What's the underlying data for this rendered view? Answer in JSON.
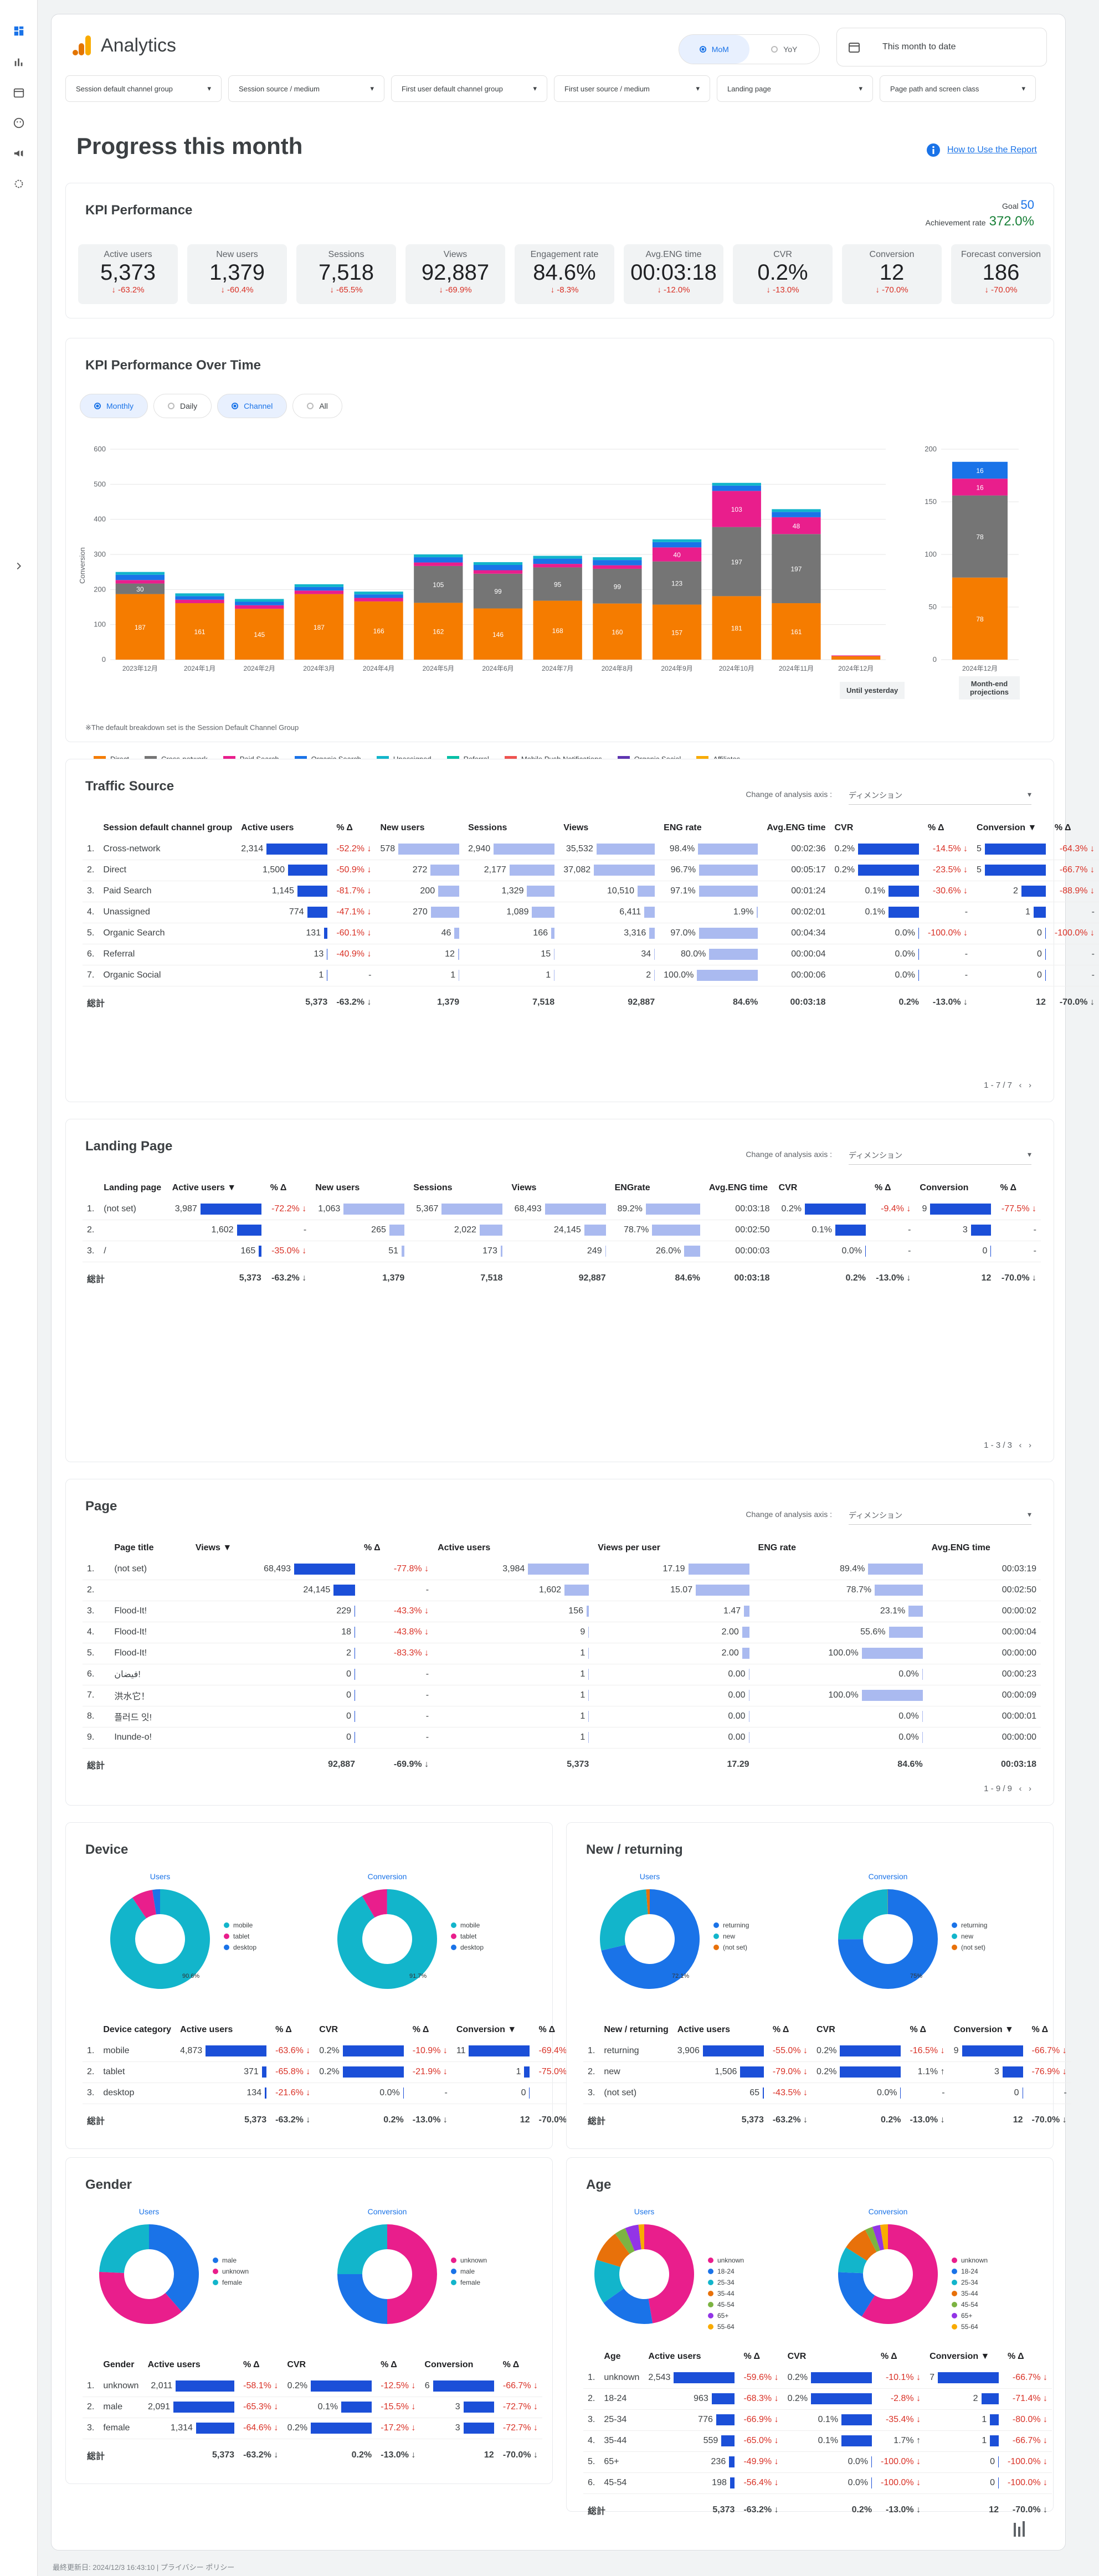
{
  "app": {
    "title": "Analytics",
    "date_range": "This month to date",
    "howto": "How to Use the Report",
    "footer": "最終更新日: 2024/12/3 16:43:10 | プライバシー ポリシー"
  },
  "compare": {
    "mom": "MoM",
    "yoy": "YoY"
  },
  "filters": [
    "Session default channel group",
    "Session source / medium",
    "First user default channel group",
    "First user source / medium",
    "Landing page",
    "Page path and screen class"
  ],
  "page_title": "Progress this month",
  "kpi": {
    "title": "KPI Performance",
    "goal_label": "Goal",
    "goal": "50",
    "ach_label": "Achievement rate",
    "ach": "372.0%",
    "cards": [
      {
        "label": "Active users",
        "value": "5,373",
        "delta": "↓ -63.2%"
      },
      {
        "label": "New users",
        "value": "1,379",
        "delta": "↓ -60.4%"
      },
      {
        "label": "Sessions",
        "value": "7,518",
        "delta": "↓ -65.5%"
      },
      {
        "label": "Views",
        "value": "92,887",
        "delta": "↓ -69.9%"
      },
      {
        "label": "Engagement rate",
        "value": "84.6%",
        "delta": "↓ -8.3%"
      },
      {
        "label": "Avg.ENG time",
        "value": "00:03:18",
        "delta": "↓ -12.0%"
      },
      {
        "label": "CVR",
        "value": "0.2%",
        "delta": "↓ -13.0%"
      },
      {
        "label": "Conversion",
        "value": "12",
        "delta": "↓ -70.0%"
      },
      {
        "label": "Forecast conversion",
        "value": "186",
        "delta": "↓ -70.0%"
      }
    ]
  },
  "kpi_time": {
    "title": "KPI Performance Over Time",
    "chips": [
      "Monthly",
      "Daily",
      "Channel",
      "All"
    ],
    "ylabel": "Conversion",
    "until": "Until yesterday",
    "proj": "Month-end projections",
    "note": "※The default breakdown set is the Session Default Channel Group",
    "legend": [
      {
        "name": "Direct",
        "color": "#f57c00"
      },
      {
        "name": "Cross-network",
        "color": "#757575"
      },
      {
        "name": "Paid Search",
        "color": "#e91e8c"
      },
      {
        "name": "Organic Search",
        "color": "#1a73e8"
      },
      {
        "name": "Unassigned",
        "color": "#12b5cb"
      },
      {
        "name": "Referral",
        "color": "#00bfa5"
      },
      {
        "name": "Mobile Push Notifications",
        "color": "#ef5350"
      },
      {
        "name": "Organic Social",
        "color": "#5e35b1"
      },
      {
        "name": "Affiliates",
        "color": "#f9ab00"
      }
    ]
  },
  "chart_data": {
    "type": "bar",
    "stacked": true,
    "ylabel": "Conversion",
    "ylim": [
      0,
      600
    ],
    "categories": [
      "2023年12月",
      "2024年1月",
      "2024年2月",
      "2024年3月",
      "2024年4月",
      "2024年5月",
      "2024年6月",
      "2024年7月",
      "2024年8月",
      "2024年9月",
      "2024年10月",
      "2024年11月",
      "2024年12月"
    ],
    "series": [
      {
        "name": "Direct",
        "values": [
          187,
          161,
          145,
          187,
          166,
          162,
          146,
          168,
          160,
          157,
          181,
          161,
          10
        ]
      },
      {
        "name": "Cross-network",
        "values": [
          30,
          0,
          0,
          0,
          0,
          105,
          99,
          95,
          99,
          123,
          197,
          197,
          0
        ]
      },
      {
        "name": "Paid Search",
        "values": [
          10,
          10,
          10,
          10,
          10,
          10,
          10,
          10,
          10,
          40,
          103,
          48,
          2
        ]
      },
      {
        "name": "Organic Search",
        "values": [
          15,
          10,
          10,
          10,
          10,
          15,
          15,
          15,
          15,
          15,
          15,
          15,
          0
        ]
      },
      {
        "name": "Unassigned",
        "values": [
          8,
          8,
          8,
          8,
          8,
          8,
          8,
          8,
          8,
          8,
          8,
          8,
          0
        ]
      }
    ],
    "projection": {
      "category": "2024年12月",
      "ylim": [
        0,
        200
      ],
      "segments": [
        {
          "name": "Direct",
          "value": 78
        },
        {
          "name": "Cross-network",
          "value": 78
        },
        {
          "name": "Paid Search",
          "value": 16
        },
        {
          "name": "Organic Search",
          "value": 16
        }
      ]
    }
  },
  "traffic": {
    "title": "Traffic Source",
    "axis_label": "Change of analysis axis :",
    "axis_value": "ディメンション",
    "headers": [
      "Session default channel group",
      "Active users",
      "% Δ",
      "New users",
      "Sessions",
      "Views",
      "ENG rate",
      "Avg.ENG time",
      "CVR",
      "% Δ",
      "Conversion ▼",
      "% Δ"
    ],
    "rows": [
      [
        "1.",
        "Cross-network",
        "2,314",
        "-52.2% ↓",
        "578",
        "2,940",
        "35,532",
        "98.4%",
        "00:02:36",
        "0.2%",
        "-14.5% ↓",
        "5",
        "-64.3% ↓"
      ],
      [
        "2.",
        "Direct",
        "1,500",
        "-50.9% ↓",
        "272",
        "2,177",
        "37,082",
        "96.7%",
        "00:05:17",
        "0.2%",
        "-23.5% ↓",
        "5",
        "-66.7% ↓"
      ],
      [
        "3.",
        "Paid Search",
        "1,145",
        "-81.7% ↓",
        "200",
        "1,329",
        "10,510",
        "97.1%",
        "00:01:24",
        "0.1%",
        "-30.6% ↓",
        "2",
        "-88.9% ↓"
      ],
      [
        "4.",
        "Unassigned",
        "774",
        "-47.1% ↓",
        "270",
        "1,089",
        "6,411",
        "1.9%",
        "00:02:01",
        "0.1%",
        "-",
        "1",
        "-"
      ],
      [
        "5.",
        "Organic Search",
        "131",
        "-60.1% ↓",
        "46",
        "166",
        "3,316",
        "97.0%",
        "00:04:34",
        "0.0%",
        "-100.0% ↓",
        "0",
        "-100.0% ↓"
      ],
      [
        "6.",
        "Referral",
        "13",
        "-40.9% ↓",
        "12",
        "15",
        "34",
        "80.0%",
        "00:00:04",
        "0.0%",
        "-",
        "0",
        "-"
      ],
      [
        "7.",
        "Organic Social",
        "1",
        "-",
        "1",
        "1",
        "2",
        "100.0%",
        "00:00:06",
        "0.0%",
        "-",
        "0",
        "-"
      ]
    ],
    "total": [
      "総計",
      "5,373",
      "-63.2% ↓",
      "1,379",
      "7,518",
      "92,887",
      "84.6%",
      "00:03:18",
      "0.2%",
      "-13.0% ↓",
      "12",
      "-70.0% ↓"
    ],
    "pager": "1 - 7 / 7"
  },
  "landing": {
    "title": "Landing Page",
    "axis_label": "Change of analysis axis :",
    "axis_value": "ディメンション",
    "headers": [
      "Landing page",
      "Active users ▼",
      "% Δ",
      "New users",
      "Sessions",
      "Views",
      "ENGrate",
      "Avg.ENG time",
      "CVR",
      "% Δ",
      "Conversion",
      "% Δ"
    ],
    "rows": [
      [
        "1.",
        "(not set)",
        "3,987",
        "-72.2% ↓",
        "1,063",
        "5,367",
        "68,493",
        "89.2%",
        "00:03:18",
        "0.2%",
        "-9.4% ↓",
        "9",
        "-77.5% ↓"
      ],
      [
        "2.",
        "",
        "1,602",
        "-",
        "265",
        "2,022",
        "24,145",
        "78.7%",
        "00:02:50",
        "0.1%",
        "-",
        "3",
        "-"
      ],
      [
        "3.",
        "/",
        "165",
        "-35.0% ↓",
        "51",
        "173",
        "249",
        "26.0%",
        "00:00:03",
        "0.0%",
        "-",
        "0",
        "-"
      ]
    ],
    "total": [
      "総計",
      "5,373",
      "-63.2% ↓",
      "1,379",
      "7,518",
      "92,887",
      "84.6%",
      "00:03:18",
      "0.2%",
      "-13.0% ↓",
      "12",
      "-70.0% ↓"
    ],
    "pager": "1 - 3 / 3"
  },
  "pages": {
    "title": "Page",
    "axis_label": "Change of analysis axis :",
    "axis_value": "ディメンション",
    "headers": [
      "Page title",
      "Views ▼",
      "% Δ",
      "Active users",
      "Views per user",
      "ENG rate",
      "Avg.ENG time"
    ],
    "rows": [
      [
        "1.",
        "(not set)",
        "68,493",
        "-77.8% ↓",
        "3,984",
        "17.19",
        "89.4%",
        "00:03:19"
      ],
      [
        "2.",
        "",
        "24,145",
        "-",
        "1,602",
        "15.07",
        "78.7%",
        "00:02:50"
      ],
      [
        "3.",
        "Flood-It!",
        "229",
        "-43.3% ↓",
        "156",
        "1.47",
        "23.1%",
        "00:00:02"
      ],
      [
        "4.",
        "Flood-It!",
        "18",
        "-43.8% ↓",
        "9",
        "2.00",
        "55.6%",
        "00:00:04"
      ],
      [
        "5.",
        "Flood-It!",
        "2",
        "-83.3% ↓",
        "1",
        "2.00",
        "100.0%",
        "00:00:00"
      ],
      [
        "6.",
        "فيضان!",
        "0",
        "-",
        "1",
        "0.00",
        "0.0%",
        "00:00:23"
      ],
      [
        "7.",
        "洪水它！",
        "0",
        "-",
        "1",
        "0.00",
        "100.0%",
        "00:00:09"
      ],
      [
        "8.",
        "플러드 잇!",
        "0",
        "-",
        "1",
        "0.00",
        "0.0%",
        "00:00:01"
      ],
      [
        "9.",
        "Inunde-o!",
        "0",
        "-",
        "1",
        "0.00",
        "0.0%",
        "00:00:00"
      ]
    ],
    "total": [
      "総計",
      "92,887",
      "-69.9% ↓",
      "5,373",
      "17.29",
      "84.6%",
      "00:03:18"
    ],
    "pager": "1 - 9 / 9"
  },
  "device": {
    "title": "Device",
    "users": "Users",
    "conv": "Conversion",
    "legend": [
      "mobile",
      "tablet",
      "desktop"
    ],
    "headers": [
      "Device category",
      "Active users",
      "% Δ",
      "CVR",
      "% Δ",
      "Conversion ▼",
      "% Δ"
    ],
    "rows": [
      [
        "1.",
        "mobile",
        "4,873",
        "-63.6% ↓",
        "0.2%",
        "-10.9% ↓",
        "11",
        "-69.4% ↓"
      ],
      [
        "2.",
        "tablet",
        "371",
        "-65.8% ↓",
        "0.2%",
        "-21.9% ↓",
        "1",
        "-75.0% ↓"
      ],
      [
        "3.",
        "desktop",
        "134",
        "-21.6% ↓",
        "0.0%",
        "-",
        "0",
        "-"
      ]
    ],
    "total": [
      "総計",
      "5,373",
      "-63.2% ↓",
      "0.2%",
      "-13.0% ↓",
      "12",
      "-70.0% ↓"
    ],
    "p1": "90.6%",
    "p2": "91.7%"
  },
  "newret": {
    "title": "New / returning",
    "users": "Users",
    "conv": "Conversion",
    "legend": [
      "returning",
      "new",
      "(not set)"
    ],
    "headers": [
      "New / returning",
      "Active users",
      "% Δ",
      "CVR",
      "% Δ",
      "Conversion ▼",
      "% Δ"
    ],
    "rows": [
      [
        "1.",
        "returning",
        "3,906",
        "-55.0% ↓",
        "0.2%",
        "-16.5% ↓",
        "9",
        "-66.7% ↓"
      ],
      [
        "2.",
        "new",
        "1,506",
        "-79.0% ↓",
        "0.2%",
        "1.1% ↑",
        "3",
        "-76.9% ↓"
      ],
      [
        "3.",
        "(not set)",
        "65",
        "-43.5% ↓",
        "0.0%",
        "-",
        "0",
        "-"
      ]
    ],
    "total": [
      "総計",
      "5,373",
      "-63.2% ↓",
      "0.2%",
      "-13.0% ↓",
      "12",
      "-70.0% ↓"
    ],
    "p1": "72.1%",
    "p2": "75%"
  },
  "gender": {
    "title": "Gender",
    "users": "Users",
    "conv": "Conversion",
    "legend_u": [
      "male",
      "unknown",
      "female"
    ],
    "legend_c": [
      "unknown",
      "male",
      "female"
    ],
    "headers": [
      "Gender",
      "Active users",
      "% Δ",
      "CVR",
      "% Δ",
      "Conversion",
      "% Δ"
    ],
    "rows": [
      [
        "1.",
        "unknown",
        "2,011",
        "-58.1% ↓",
        "0.2%",
        "-12.5% ↓",
        "6",
        "-66.7% ↓"
      ],
      [
        "2.",
        "male",
        "2,091",
        "-65.3% ↓",
        "0.1%",
        "-15.5% ↓",
        "3",
        "-72.7% ↓"
      ],
      [
        "3.",
        "female",
        "1,314",
        "-64.6% ↓",
        "0.2%",
        "-17.2% ↓",
        "3",
        "-72.7% ↓"
      ]
    ],
    "total": [
      "総計",
      "5,373",
      "-63.2% ↓",
      "0.2%",
      "-13.0% ↓",
      "12",
      "-70.0% ↓"
    ]
  },
  "age": {
    "title": "Age",
    "users": "Users",
    "conv": "Conversion",
    "legend": [
      "unknown",
      "18-24",
      "25-34",
      "35-44",
      "45-54",
      "65+",
      "55-64"
    ],
    "headers": [
      "Age",
      "Active users",
      "% Δ",
      "CVR",
      "% Δ",
      "Conversion ▼",
      "% Δ"
    ],
    "rows": [
      [
        "1.",
        "unknown",
        "2,543",
        "-59.6% ↓",
        "0.2%",
        "-10.1% ↓",
        "7",
        "-66.7% ↓"
      ],
      [
        "2.",
        "18-24",
        "963",
        "-68.3% ↓",
        "0.2%",
        "-2.8% ↓",
        "2",
        "-71.4% ↓"
      ],
      [
        "3.",
        "25-34",
        "776",
        "-66.9% ↓",
        "0.1%",
        "-35.4% ↓",
        "1",
        "-80.0% ↓"
      ],
      [
        "4.",
        "35-44",
        "559",
        "-65.0% ↓",
        "0.1%",
        "1.7% ↑",
        "1",
        "-66.7% ↓"
      ],
      [
        "5.",
        "65+",
        "236",
        "-49.9% ↓",
        "0.0%",
        "-100.0% ↓",
        "0",
        "-100.0% ↓"
      ],
      [
        "6.",
        "45-54",
        "198",
        "-56.4% ↓",
        "0.0%",
        "-100.0% ↓",
        "0",
        "-100.0% ↓"
      ]
    ],
    "total": [
      "総計",
      "5,373",
      "-63.2% ↓",
      "0.2%",
      "-13.0% ↓",
      "12",
      "-70.0% ↓"
    ]
  }
}
